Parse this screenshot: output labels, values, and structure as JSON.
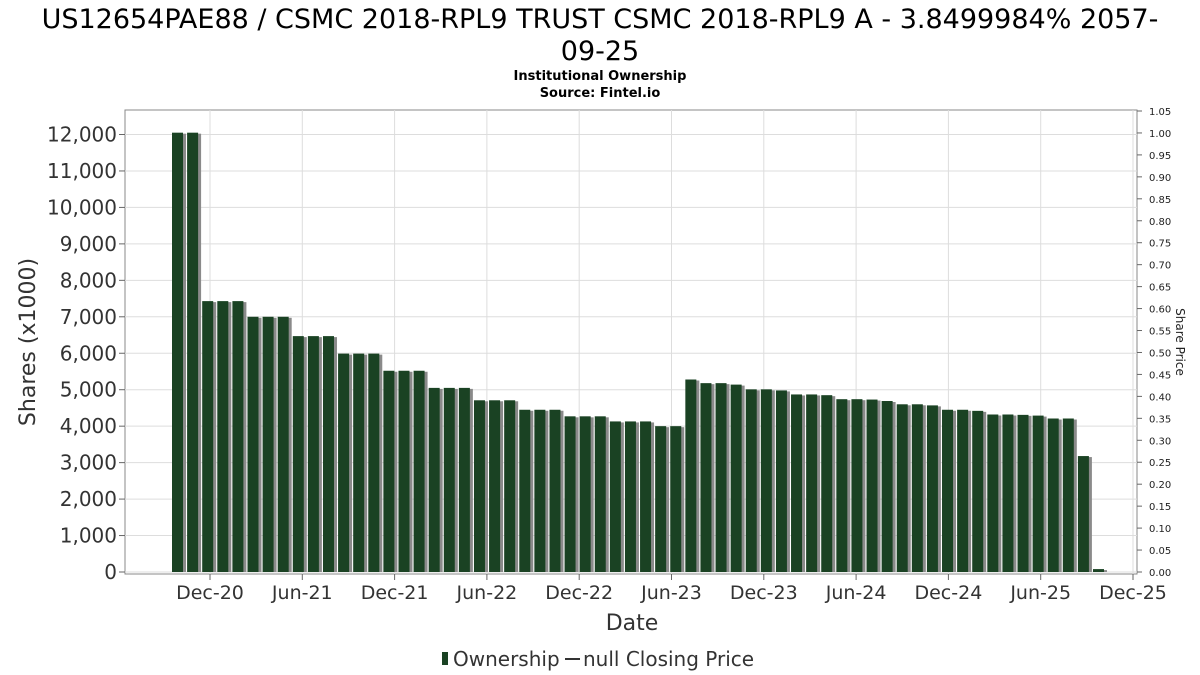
{
  "chart_data": {
    "type": "bar",
    "title": "US12654PAE88 / CSMC 2018-RPL9 TRUST CSMC 2018-RPL9 A - 3.8499984% 2057-",
    "title_line2": "09-25",
    "subtitle": "Institutional Ownership",
    "source": "Source: Fintel.io",
    "xlabel": "Date",
    "ylabel": "Shares (x1000)",
    "y2label": "Share Price",
    "ylim": [
      0,
      12500
    ],
    "y_ticks": [
      0,
      1000,
      2000,
      3000,
      4000,
      5000,
      6000,
      7000,
      8000,
      9000,
      10000,
      11000,
      12000
    ],
    "y_tick_labels": [
      "0",
      "1,000",
      "2,000",
      "3,000",
      "4,000",
      "5,000",
      "6,000",
      "7,000",
      "8,000",
      "9,000",
      "10,000",
      "11,000",
      "12,000"
    ],
    "y2lim": [
      0,
      1.05
    ],
    "y2_tick_labels": [
      "0.00",
      "0.05",
      "0.10",
      "0.15",
      "0.20",
      "0.25",
      "0.30",
      "0.35",
      "0.40",
      "0.45",
      "0.50",
      "0.55",
      "0.60",
      "0.65",
      "0.70",
      "0.75",
      "0.80",
      "0.85",
      "0.90",
      "0.95",
      "1.00",
      "1.05"
    ],
    "x_tick_labels": [
      "Dec-20",
      "Jun-21",
      "Dec-21",
      "Jun-22",
      "Dec-22",
      "Jun-23",
      "Dec-23",
      "Jun-24",
      "Dec-24",
      "Jun-25",
      "Dec-25"
    ],
    "grid": true,
    "legend_position": "bottom-center",
    "colors": {
      "bar": "#1a4223",
      "bar_shadow": "#8a8a8a",
      "grid": "#dddddd",
      "frame": "#888888"
    },
    "series": [
      {
        "name": "Ownership",
        "values": [
          12050,
          12050,
          7430,
          7430,
          7430,
          7000,
          7000,
          7000,
          6470,
          6470,
          6470,
          5990,
          5990,
          5990,
          5520,
          5520,
          5520,
          5050,
          5050,
          5050,
          4710,
          4710,
          4710,
          4450,
          4450,
          4450,
          4270,
          4270,
          4270,
          4130,
          4130,
          4130,
          4000,
          4000,
          5280,
          5180,
          5180,
          5140,
          5010,
          5010,
          4980,
          4870,
          4870,
          4850,
          4740,
          4740,
          4730,
          4690,
          4600,
          4600,
          4570,
          4450,
          4450,
          4420,
          4320,
          4320,
          4310,
          4290,
          4210,
          4210,
          3180,
          80
        ]
      }
    ],
    "legend": {
      "ownership_label": "Ownership",
      "price_label": "null Closing Price"
    }
  }
}
